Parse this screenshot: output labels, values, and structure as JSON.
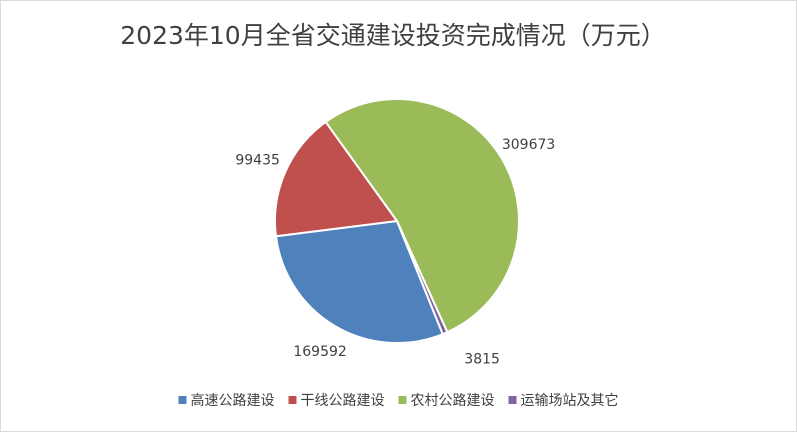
{
  "chart_data": {
    "type": "pie",
    "title": "2023年10月全省交通建设投资完成情况（万元）",
    "categories": [
      "高速公路建设",
      "干线公路建设",
      "农村公路建设",
      "运输场站及其它"
    ],
    "values": [
      169592,
      99435,
      309673,
      3815
    ],
    "colors": [
      "#4f81bd",
      "#c0504d",
      "#9bbb59",
      "#8064a2"
    ],
    "legend": "bottom"
  }
}
